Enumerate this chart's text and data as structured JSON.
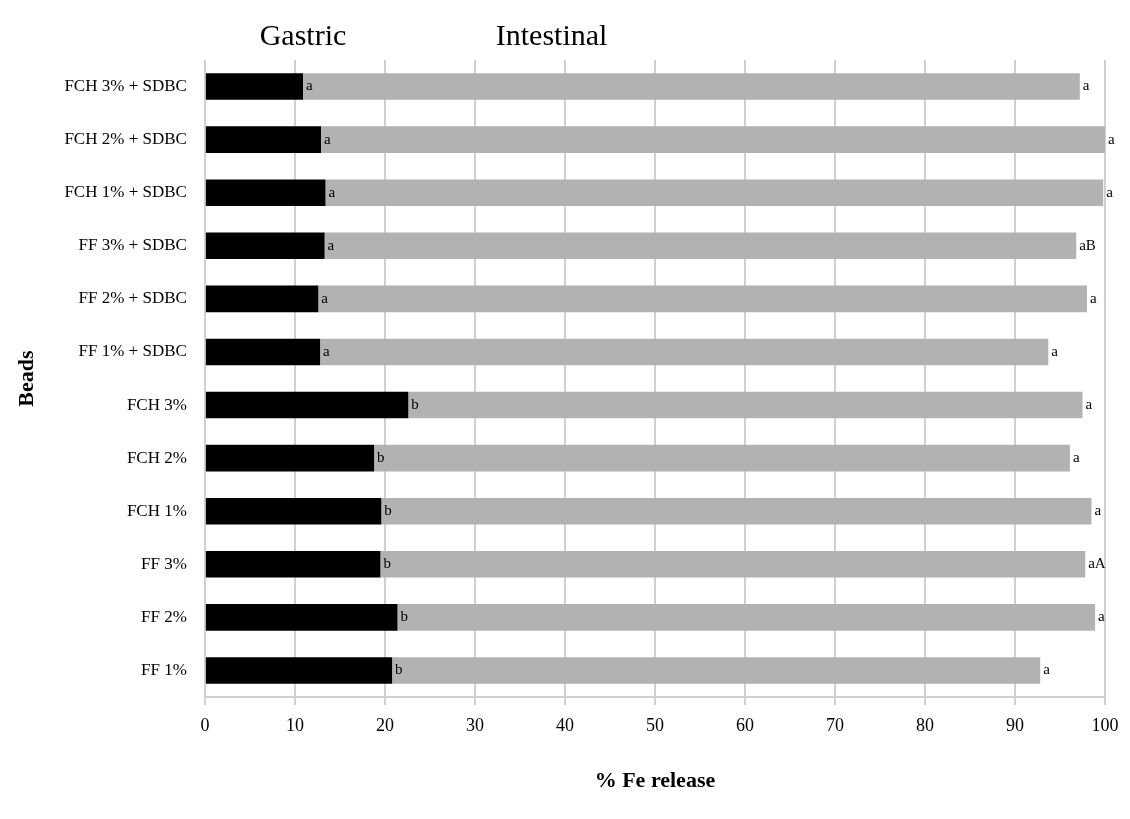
{
  "chart_data": {
    "type": "bar",
    "orientation": "horizontal",
    "stacked": true,
    "categories": [
      "FCH 3% + SDBC",
      "FCH 2% + SDBC",
      "FCH 1% + SDBC",
      "FF 3% + SDBC",
      "FF 2% + SDBC",
      "FF 1% + SDBC",
      "FCH 3%",
      "FCH 2%",
      "FCH 1%",
      "FF 3%",
      "FF 2%",
      "FF 1%"
    ],
    "series": [
      {
        "name": "Gastric",
        "color": "#000000",
        "values": [
          10.9,
          12.9,
          13.4,
          13.3,
          12.6,
          12.8,
          22.6,
          18.8,
          19.6,
          19.5,
          21.4,
          20.8
        ]
      },
      {
        "name": "Intestinal",
        "color": "#b2b2b2",
        "values": [
          86.3,
          87.1,
          86.4,
          83.5,
          85.4,
          80.9,
          74.9,
          77.3,
          78.9,
          78.3,
          77.5,
          72.0
        ]
      }
    ],
    "xlabel": "% Fe release",
    "ylabel": "Beads",
    "xlim": [
      0,
      100
    ],
    "xticks": [
      0,
      10,
      20,
      30,
      40,
      50,
      60,
      70,
      80,
      90,
      100
    ],
    "grid": "x",
    "legend": "top",
    "annotations": [
      {
        "text": "a",
        "x": 10.9,
        "y": "FCH 3% + SDBC"
      },
      {
        "text": "a",
        "x": 97.2,
        "y": "FCH 3% + SDBC"
      },
      {
        "text": "a",
        "x": 12.9,
        "y": "FCH 2% + SDBC"
      },
      {
        "text": "a",
        "x": 100.0,
        "y": "FCH 2% + SDBC"
      },
      {
        "text": "a",
        "x": 13.4,
        "y": "FCH 1% + SDBC"
      },
      {
        "text": "a",
        "x": 99.8,
        "y": "FCH 1% + SDBC"
      },
      {
        "text": "a",
        "x": 13.3,
        "y": "FF 3% + SDBC"
      },
      {
        "text": "aB",
        "x": 96.8,
        "y": "FF 3% + SDBC"
      },
      {
        "text": "a",
        "x": 12.6,
        "y": "FF 2% + SDBC"
      },
      {
        "text": "a",
        "x": 98.0,
        "y": "FF 2% + SDBC"
      },
      {
        "text": "a",
        "x": 12.8,
        "y": "FF 1% + SDBC"
      },
      {
        "text": "a",
        "x": 93.7,
        "y": "FF 1% + SDBC"
      },
      {
        "text": "b",
        "x": 22.6,
        "y": "FCH 3%"
      },
      {
        "text": "a",
        "x": 97.5,
        "y": "FCH 3%"
      },
      {
        "text": "b",
        "x": 18.8,
        "y": "FCH 2%"
      },
      {
        "text": "a",
        "x": 96.1,
        "y": "FCH 2%"
      },
      {
        "text": "b",
        "x": 19.6,
        "y": "FCH 1%"
      },
      {
        "text": "a",
        "x": 98.5,
        "y": "FCH 1%"
      },
      {
        "text": "b",
        "x": 19.5,
        "y": "FF 3%"
      },
      {
        "text": "aA",
        "x": 97.8,
        "y": "FF 3%"
      },
      {
        "text": "b",
        "x": 21.4,
        "y": "FF 2%"
      },
      {
        "text": "a",
        "x": 98.9,
        "y": "FF 2%"
      },
      {
        "text": "b",
        "x": 20.8,
        "y": "FF 1%"
      },
      {
        "text": "a",
        "x": 92.8,
        "y": "FF 1%"
      }
    ]
  }
}
